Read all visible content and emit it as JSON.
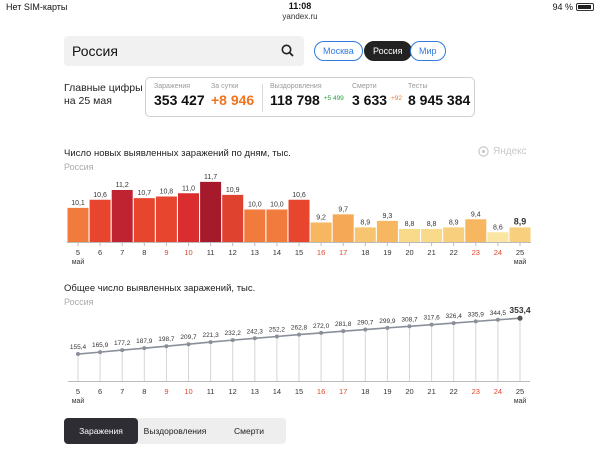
{
  "status_bar": {
    "carrier": "Нет SIM-карты",
    "time": "11:08",
    "url": "yandex.ru",
    "battery": "94 %"
  },
  "search": {
    "value": "Россия"
  },
  "regions": [
    "Москва",
    "Россия",
    "Мир"
  ],
  "key_figures": {
    "title_line1": "Главные цифры",
    "title_line2": "на 25 мая",
    "items": [
      {
        "label": "Заражения",
        "value": "353 427",
        "delta": ""
      },
      {
        "label": "За сутки",
        "value": "+8 946",
        "delta": ""
      },
      {
        "label": "Выздоровления",
        "value": "118 798",
        "delta": "+5 499"
      },
      {
        "label": "Смерти",
        "value": "3 633",
        "delta": "+92"
      },
      {
        "label": "Тесты",
        "value": "8 945 384",
        "delta": ""
      }
    ]
  },
  "watermark": "Яндекс",
  "chart_data": [
    {
      "type": "bar",
      "title": "Число новых выявленных заражений по дням, тыс.",
      "subtitle": "Россия",
      "categories": [
        "5",
        "6",
        "7",
        "8",
        "9",
        "10",
        "11",
        "12",
        "13",
        "14",
        "15",
        "16",
        "17",
        "18",
        "19",
        "20",
        "21",
        "22",
        "23",
        "24",
        "25"
      ],
      "month_label": "май",
      "values": [
        10.1,
        10.6,
        11.2,
        10.7,
        10.8,
        11.0,
        11.7,
        10.9,
        10.0,
        10.0,
        10.6,
        9.2,
        9.7,
        8.9,
        9.3,
        8.8,
        8.8,
        8.9,
        9.4,
        8.6,
        8.9
      ],
      "value_labels": [
        "10,1",
        "10,6",
        "11,2",
        "10,7",
        "10,8",
        "11,0",
        "11,7",
        "10,9",
        "10,0",
        "10,0",
        "10,6",
        "9,2",
        "9,7",
        "8,9",
        "9,3",
        "8,8",
        "8,8",
        "8,9",
        "9,4",
        "8,6",
        "8,9"
      ],
      "colors": [
        "#f07b3c",
        "#e8452f",
        "#bf2332",
        "#e8452f",
        "#e8452f",
        "#d92d2f",
        "#a51b2b",
        "#e04230",
        "#f07b3c",
        "#f07b3c",
        "#e8452f",
        "#f6b760",
        "#f5a855",
        "#f7c46f",
        "#f6b760",
        "#f9d98a",
        "#f9d98a",
        "#f8cf7c",
        "#f6b760",
        "#fbe5a3",
        "#f8cf7c"
      ],
      "red_ticks": [
        "9",
        "10",
        "16",
        "17",
        "23",
        "24"
      ],
      "ylim": [
        0,
        12
      ]
    },
    {
      "type": "line",
      "title": "Общее число выявленных заражений, тыс.",
      "subtitle": "Россия",
      "categories": [
        "5",
        "6",
        "7",
        "8",
        "9",
        "10",
        "11",
        "12",
        "13",
        "14",
        "15",
        "16",
        "17",
        "18",
        "19",
        "20",
        "21",
        "22",
        "23",
        "24",
        "25"
      ],
      "month_label": "май",
      "values": [
        155.4,
        165.9,
        177.2,
        187.9,
        198.7,
        209.7,
        221.3,
        232.2,
        242.3,
        252.2,
        262.8,
        272.0,
        281.8,
        290.7,
        299.9,
        308.7,
        317.6,
        326.4,
        335.9,
        344.5,
        353.4
      ],
      "value_labels": [
        "155,4",
        "165,9",
        "177,2",
        "187,9",
        "198,7",
        "209,7",
        "221,3",
        "232,2",
        "242,3",
        "252,2",
        "262,8",
        "272,0",
        "281,8",
        "290,7",
        "299,9",
        "308,7",
        "317,6",
        "326,4",
        "335,9",
        "344,5",
        "353,4"
      ],
      "red_ticks": [
        "9",
        "10",
        "16",
        "17",
        "23",
        "24"
      ],
      "ylim": [
        0,
        400
      ]
    }
  ],
  "bottom_tabs": [
    "Заражения",
    "Выздоровления",
    "Смерти"
  ]
}
